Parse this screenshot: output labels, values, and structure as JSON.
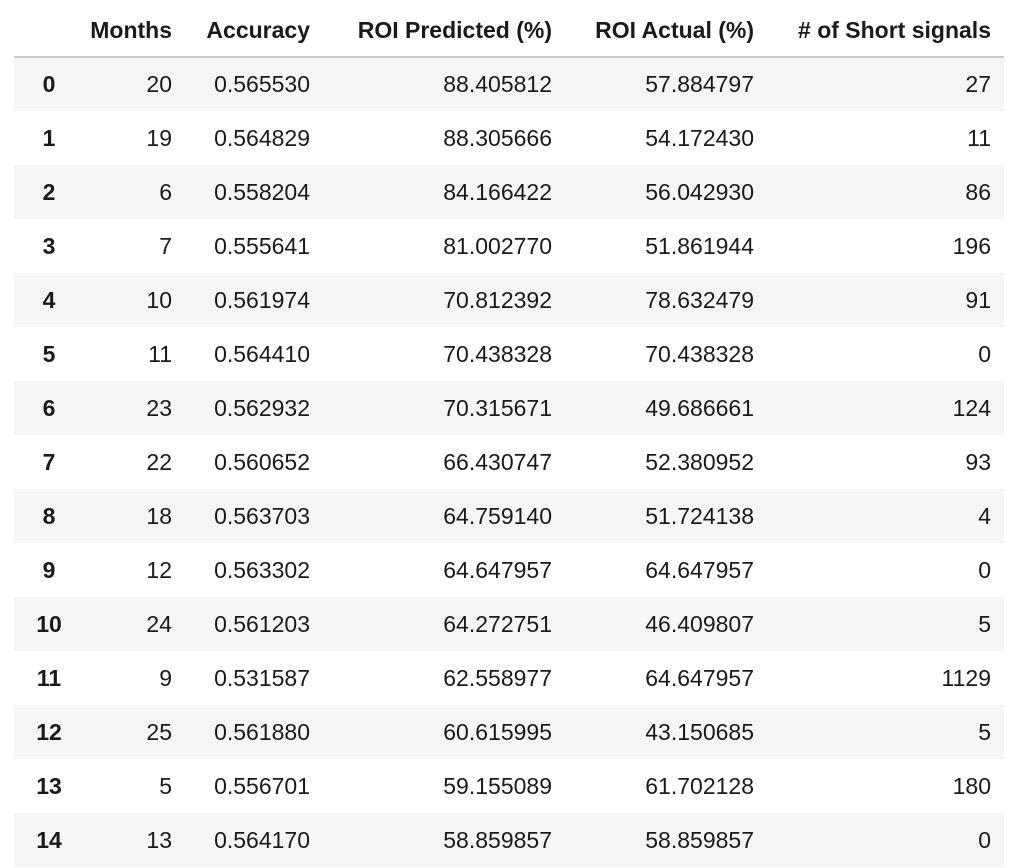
{
  "table": {
    "columns": [
      "Months",
      "Accuracy",
      "ROI Predicted (%)",
      "ROI Actual (%)",
      "# of Short signals"
    ],
    "rows": [
      {
        "index": "0",
        "cells": [
          "20",
          "0.565530",
          "88.405812",
          "57.884797",
          "27"
        ]
      },
      {
        "index": "1",
        "cells": [
          "19",
          "0.564829",
          "88.305666",
          "54.172430",
          "11"
        ]
      },
      {
        "index": "2",
        "cells": [
          "6",
          "0.558204",
          "84.166422",
          "56.042930",
          "86"
        ]
      },
      {
        "index": "3",
        "cells": [
          "7",
          "0.555641",
          "81.002770",
          "51.861944",
          "196"
        ]
      },
      {
        "index": "4",
        "cells": [
          "10",
          "0.561974",
          "70.812392",
          "78.632479",
          "91"
        ]
      },
      {
        "index": "5",
        "cells": [
          "11",
          "0.564410",
          "70.438328",
          "70.438328",
          "0"
        ]
      },
      {
        "index": "6",
        "cells": [
          "23",
          "0.562932",
          "70.315671",
          "49.686661",
          "124"
        ]
      },
      {
        "index": "7",
        "cells": [
          "22",
          "0.560652",
          "66.430747",
          "52.380952",
          "93"
        ]
      },
      {
        "index": "8",
        "cells": [
          "18",
          "0.563703",
          "64.759140",
          "51.724138",
          "4"
        ]
      },
      {
        "index": "9",
        "cells": [
          "12",
          "0.563302",
          "64.647957",
          "64.647957",
          "0"
        ]
      },
      {
        "index": "10",
        "cells": [
          "24",
          "0.561203",
          "64.272751",
          "46.409807",
          "5"
        ]
      },
      {
        "index": "11",
        "cells": [
          "9",
          "0.531587",
          "62.558977",
          "64.647957",
          "1129"
        ]
      },
      {
        "index": "12",
        "cells": [
          "25",
          "0.561880",
          "60.615995",
          "43.150685",
          "5"
        ]
      },
      {
        "index": "13",
        "cells": [
          "5",
          "0.556701",
          "59.155089",
          "61.702128",
          "180"
        ]
      },
      {
        "index": "14",
        "cells": [
          "13",
          "0.564170",
          "58.859857",
          "58.859857",
          "0"
        ]
      }
    ]
  }
}
